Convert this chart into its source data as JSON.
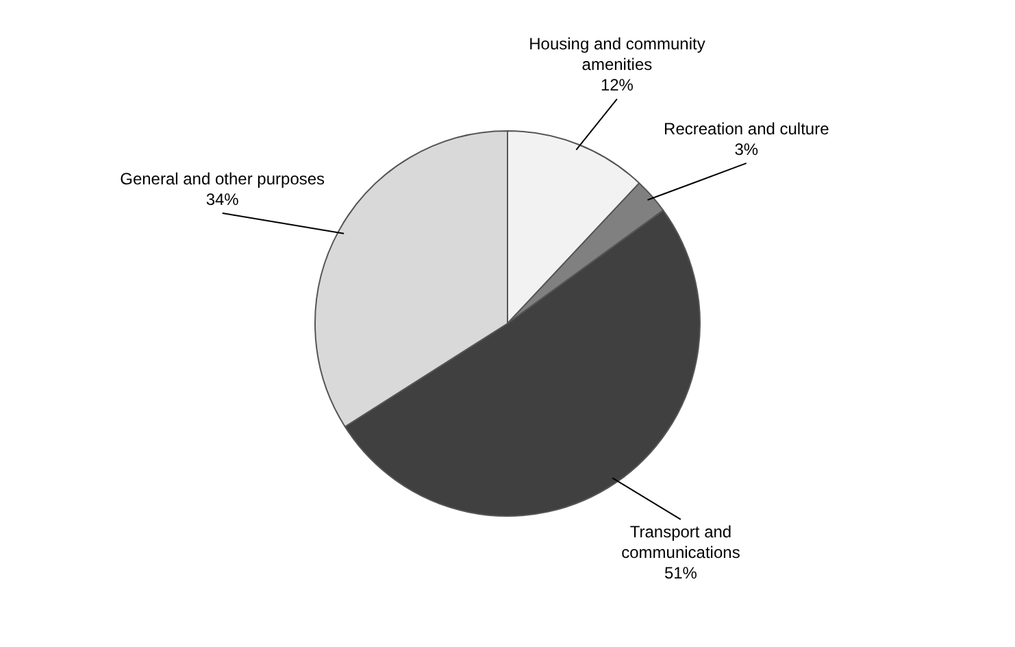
{
  "chart_data": {
    "type": "pie",
    "categories": [
      "Housing and community amenities",
      "Recreation and culture",
      "Transport and communications",
      "General and other purposes"
    ],
    "values": [
      12,
      3,
      51,
      34
    ],
    "colors": [
      "#f2f2f2",
      "#808080",
      "#404040",
      "#d9d9d9"
    ],
    "value_labels": [
      "12%",
      "3%",
      "51%",
      "34%"
    ],
    "legend": false
  }
}
